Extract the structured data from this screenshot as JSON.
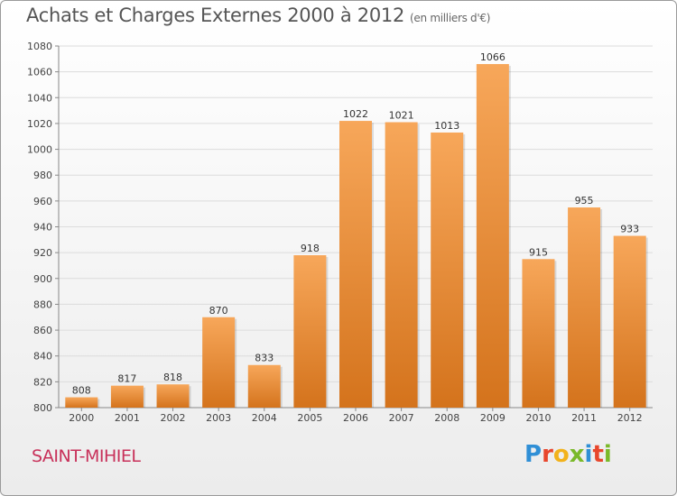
{
  "header": {
    "title": "Achats et Charges Externes 2000 à 2012",
    "subtitle": "(en milliers d'€)"
  },
  "footer": {
    "town": "SAINT-MIHIEL",
    "logo_letters": [
      "P",
      "r",
      "o",
      "x",
      "i",
      "t",
      "i"
    ],
    "logo_colors": [
      "#2f8fd6",
      "#e8462c",
      "#f2b21b",
      "#7ab929",
      "#2f8fd6",
      "#e8462c",
      "#7ab929"
    ]
  },
  "chart_data": {
    "type": "bar",
    "title": "Achats et Charges Externes 2000 à 2012",
    "subtitle": "(en milliers d'€)",
    "xlabel": "",
    "ylabel": "",
    "categories": [
      "2000",
      "2001",
      "2002",
      "2003",
      "2004",
      "2005",
      "2006",
      "2007",
      "2008",
      "2009",
      "2010",
      "2011",
      "2012"
    ],
    "values": [
      808,
      817,
      818,
      870,
      833,
      918,
      1022,
      1021,
      1013,
      1066,
      915,
      955,
      933
    ],
    "ylim": [
      800,
      1080
    ],
    "yticks": [
      800,
      820,
      840,
      860,
      880,
      900,
      920,
      940,
      960,
      980,
      1000,
      1020,
      1040,
      1060,
      1080
    ],
    "grid": true,
    "legend": "none",
    "bar_color_top": "#f7a75a",
    "bar_color_bottom": "#d4731c"
  }
}
